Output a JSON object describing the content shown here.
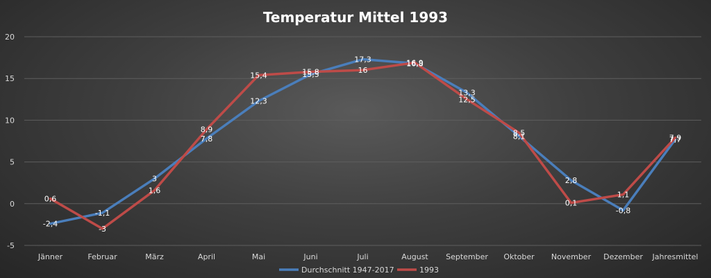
{
  "chart_data": {
    "type": "line",
    "title": "Temperatur Mittel 1993",
    "categories": [
      "Jänner",
      "Februar",
      "März",
      "April",
      "Mai",
      "Juni",
      "Juli",
      "August",
      "September",
      "Oktober",
      "November",
      "Dezember",
      "Jahresmittel"
    ],
    "ylim": [
      -5,
      20
    ],
    "yticks": [
      -5,
      0,
      5,
      10,
      15,
      20
    ],
    "grid": true,
    "legend_position": "bottom",
    "series": [
      {
        "name": "Durchschnitt 1947-2017",
        "color": "#4a7ebb",
        "values": [
          -2.4,
          -1.1,
          3,
          7.8,
          12.3,
          15.5,
          17.3,
          16.8,
          13.3,
          8.1,
          2.8,
          -0.8,
          7.7
        ],
        "labels": [
          "-2,4",
          "-1,1",
          "3",
          "7,8",
          "12,3",
          "15,5",
          "17,3",
          "16,8",
          "13,3",
          "8,1",
          "2,8",
          "-0,8",
          "7,7"
        ]
      },
      {
        "name": "1993",
        "color": "#be4b48",
        "values": [
          0.6,
          -3,
          1.6,
          8.9,
          15.4,
          15.8,
          16,
          16.9,
          12.5,
          8.5,
          0.1,
          1.1,
          7.9
        ],
        "labels": [
          "0,6",
          "-3",
          "1,6",
          "8,9",
          "15,4",
          "15,8",
          "16",
          "16,9",
          "12,5",
          "8,5",
          "0,1",
          "1,1",
          "7,9"
        ]
      }
    ]
  }
}
